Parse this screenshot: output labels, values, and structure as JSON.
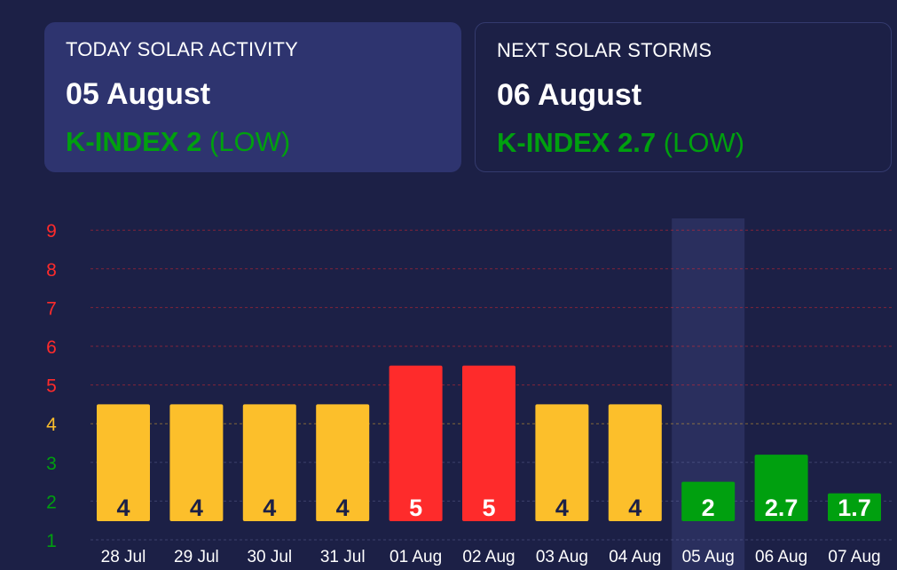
{
  "today": {
    "label": "TODAY SOLAR ACTIVITY",
    "date": "05 August",
    "kindex_label": "K-INDEX 2",
    "level": "(LOW)"
  },
  "next": {
    "label": "NEXT SOLAR STORMS",
    "date": "06 August",
    "kindex_label": "K-INDEX 2.7",
    "level": "(LOW)"
  },
  "colors": {
    "low": "#00a00f",
    "moderate": "#fcbf2b",
    "storm": "#fe2b2b",
    "background": "#1c2046",
    "highlight_band": "#2c3160"
  },
  "chart_data": {
    "type": "bar",
    "categories": [
      "28 Jul",
      "29 Jul",
      "30 Jul",
      "31 Jul",
      "01 Aug",
      "02 Aug",
      "03 Aug",
      "04 Aug",
      "05 Aug",
      "06 Aug",
      "07 Aug"
    ],
    "values": [
      4,
      4,
      4,
      4,
      5,
      5,
      4,
      4,
      2,
      2.7,
      1.7
    ],
    "value_labels": [
      "4",
      "4",
      "4",
      "4",
      "5",
      "5",
      "4",
      "4",
      "2",
      "2.7",
      "1.7"
    ],
    "yticks": [
      1,
      2,
      3,
      4,
      5,
      6,
      7,
      8,
      9
    ],
    "ytick_colors": [
      "#00a00f",
      "#00a00f",
      "#00a00f",
      "#fcbf2b",
      "#fe2b2b",
      "#fe2b2b",
      "#fe2b2b",
      "#fe2b2b",
      "#fe2b2b"
    ],
    "bar_colors": [
      "#fcbf2b",
      "#fcbf2b",
      "#fcbf2b",
      "#fcbf2b",
      "#fe2b2b",
      "#fe2b2b",
      "#fcbf2b",
      "#fcbf2b",
      "#00a00f",
      "#00a00f",
      "#00a00f"
    ],
    "label_colors": [
      "#1c2046",
      "#1c2046",
      "#1c2046",
      "#1c2046",
      "#ffffff",
      "#ffffff",
      "#1c2046",
      "#1c2046",
      "#ffffff",
      "#ffffff",
      "#ffffff"
    ],
    "highlighted_category": "05 Aug",
    "ylim": [
      1,
      9
    ],
    "grid": true,
    "title": "",
    "xlabel": "",
    "ylabel": ""
  }
}
